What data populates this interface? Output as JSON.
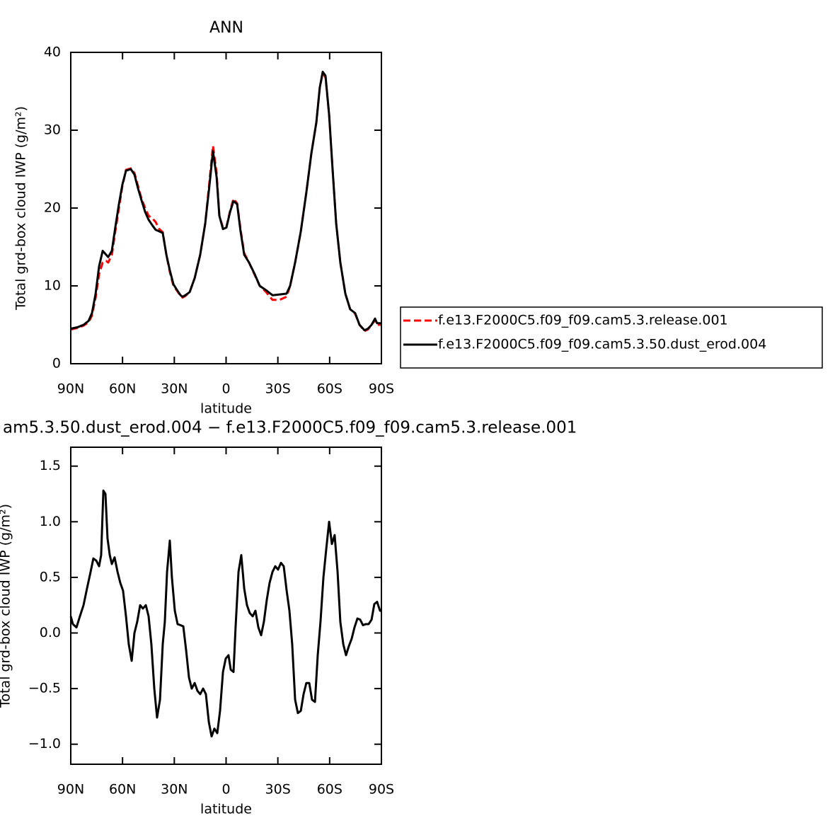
{
  "chart_data": [
    {
      "type": "line",
      "title": "ANN",
      "xlabel": "latitude",
      "ylabel": "Total grd-box cloud IWP (g/m²)",
      "x": [
        90,
        85.9,
        82.6,
        79.7,
        77.7,
        75.6,
        73.6,
        71.5,
        69.5,
        68.3,
        66.2,
        64.2,
        62.1,
        60.1,
        58,
        55.2,
        53.1,
        51,
        49,
        46.9,
        44.9,
        42.8,
        40.8,
        38.7,
        36.7,
        34.6,
        32.6,
        30.5,
        28.5,
        26.4,
        25.2,
        23.6,
        21.1,
        18.2,
        15,
        12.1,
        9.6,
        7.6,
        5.5,
        3.9,
        1.8,
        -0.2,
        -2.3,
        -4.3,
        -6.4,
        -8.4,
        -10.5,
        -13.3,
        -16.6,
        -19.5,
        -22.8,
        -26.9,
        -31,
        -35,
        -37.1,
        -40,
        -43.3,
        -46.5,
        -49.4,
        -52.3,
        -54.3,
        -56,
        -57.6,
        -59.7,
        -61.7,
        -63.8,
        -66.2,
        -69.1,
        -71.9,
        -74.8,
        -77.3,
        -80.2,
        -82.2,
        -84.3,
        -86.3,
        -87.5,
        -90
      ],
      "series": [
        {
          "name": "f.e13.F2000C5.f09_f09.cam5.3.release.001",
          "color": "#ff0000",
          "dashed": true,
          "values": [
            4.4,
            4.6,
            4.9,
            5.3,
            6.2,
            8.5,
            11.5,
            13,
            13.2,
            13,
            14,
            17,
            20,
            22.8,
            24.9,
            25.1,
            24.5,
            22.8,
            21.2,
            20,
            19,
            18.7,
            18.2,
            17.3,
            16.9,
            14,
            11.8,
            10,
            9.4,
            8.7,
            8.5,
            8.7,
            9.2,
            11,
            14,
            18,
            23.5,
            28,
            24.5,
            19,
            17.5,
            17.6,
            19.6,
            21.2,
            20.6,
            17.2,
            14.2,
            13,
            11.4,
            10,
            9.3,
            8.2,
            8.2,
            8.6,
            10,
            13,
            17,
            22,
            27,
            31,
            35.5,
            37.3,
            36.8,
            32,
            25,
            18,
            13,
            9,
            7,
            6.4,
            5,
            4.2,
            4.4,
            5,
            5.6,
            5,
            5
          ]
        },
        {
          "name": "f.e13.F2000C5.f09_f09.cam5.3.50.dust_erod.004",
          "color": "#000000",
          "dashed": false,
          "values": [
            4.5,
            4.7,
            5.0,
            5.5,
            6.5,
            9,
            12.5,
            14.5,
            14,
            13.7,
            14.5,
            17.5,
            20.5,
            23,
            24.8,
            25,
            24.3,
            22.5,
            21,
            19.5,
            18.5,
            17.8,
            17.2,
            17,
            16.8,
            14,
            12,
            10.2,
            9.5,
            8.8,
            8.6,
            8.8,
            9.2,
            11,
            14,
            18,
            23,
            27.3,
            24,
            19,
            17.3,
            17.5,
            19.5,
            20.9,
            20.5,
            17,
            14,
            13,
            11.5,
            10,
            9.5,
            8.8,
            8.9,
            9,
            10,
            13,
            17,
            22,
            27,
            31,
            35.5,
            37.5,
            37,
            32,
            25,
            18,
            13,
            9,
            7,
            6.5,
            5,
            4.3,
            4.5,
            5.0,
            5.8,
            5.2,
            5.2
          ]
        }
      ],
      "xlim": [
        90,
        -90
      ],
      "xticks": [
        {
          "value": 90,
          "label": "90N"
        },
        {
          "value": 60,
          "label": "60N"
        },
        {
          "value": 30,
          "label": "30N"
        },
        0,
        {
          "value": -30,
          "label": "30S"
        },
        {
          "value": -60,
          "label": "60S"
        },
        {
          "value": -90,
          "label": "90S"
        }
      ],
      "ylim": [
        0,
        40
      ],
      "yticks": [
        0,
        10,
        20,
        30,
        40
      ],
      "grid": false,
      "legend": "right"
    },
    {
      "type": "line",
      "title": "am5.3.50.dust_erod.004 − f.e13.F2000C5.f09_f09.cam5.3.release.001",
      "xlabel": "latitude",
      "ylabel": "Total grd-box cloud IWP (g/m²)",
      "x": [
        90,
        88.8,
        86.7,
        84.7,
        82.6,
        80.6,
        78.5,
        76.9,
        75.2,
        73.6,
        72.4,
        71.1,
        69.9,
        68.7,
        67.4,
        66.2,
        64.6,
        62.9,
        61.3,
        59.7,
        58,
        56.4,
        54.7,
        53.1,
        51.5,
        49.8,
        48.2,
        46.5,
        44.9,
        43.3,
        41.6,
        40,
        38.3,
        36.7,
        35.5,
        34.2,
        32.6,
        31.4,
        29.7,
        28.1,
        26.4,
        24.8,
        23.2,
        21.5,
        19.9,
        18.2,
        16.6,
        15,
        13.3,
        11.7,
        10,
        8.4,
        6.8,
        5.1,
        3.5,
        1.8,
        0.2,
        -1.4,
        -2.7,
        -4.3,
        -5.5,
        -7.2,
        -8.8,
        -10.5,
        -12.1,
        -13.7,
        -15.4,
        -17,
        -18.7,
        -20.3,
        -21.9,
        -23.6,
        -25.2,
        -26.9,
        -28.5,
        -30.1,
        -31.8,
        -33.4,
        -35.1,
        -36.7,
        -38.3,
        -40,
        -41.6,
        -43.3,
        -44.9,
        -46.5,
        -48.2,
        -49.8,
        -51.5,
        -53.1,
        -54.7,
        -56.4,
        -58,
        -59.7,
        -61.3,
        -62.9,
        -64.6,
        -66.2,
        -67.9,
        -69.5,
        -71.1,
        -72.8,
        -74.4,
        -76.1,
        -77.7,
        -79.3,
        -81,
        -82.6,
        -84.3,
        -85.9,
        -87.5,
        -89.2,
        -90
      ],
      "values": [
        0.15,
        0.08,
        0.05,
        0.15,
        0.25,
        0.4,
        0.55,
        0.67,
        0.65,
        0.6,
        0.7,
        1.28,
        1.25,
        0.85,
        0.7,
        0.62,
        0.68,
        0.55,
        0.45,
        0.38,
        0.15,
        -0.1,
        -0.25,
        0,
        0.1,
        0.25,
        0.22,
        0.25,
        0.15,
        -0.1,
        -0.5,
        -0.76,
        -0.6,
        -0.1,
        0.1,
        0.55,
        0.83,
        0.5,
        0.2,
        0.08,
        0.07,
        0.06,
        -0.15,
        -0.4,
        -0.5,
        -0.45,
        -0.52,
        -0.55,
        -0.5,
        -0.55,
        -0.8,
        -0.93,
        -0.86,
        -0.9,
        -0.7,
        -0.35,
        -0.23,
        -0.2,
        -0.33,
        -0.35,
        0.05,
        0.55,
        0.7,
        0.4,
        0.25,
        0.18,
        0.15,
        0.2,
        0.05,
        -0.02,
        0.1,
        0.3,
        0.45,
        0.55,
        0.6,
        0.57,
        0.63,
        0.6,
        0.38,
        0.2,
        -0.1,
        -0.6,
        -0.72,
        -0.7,
        -0.55,
        -0.45,
        -0.45,
        -0.6,
        -0.62,
        -0.2,
        0.1,
        0.5,
        0.75,
        1.0,
        0.8,
        0.88,
        0.55,
        0.1,
        -0.1,
        -0.2,
        -0.12,
        -0.05,
        0.05,
        0.13,
        0.12,
        0.07,
        0.08,
        0.08,
        0.12,
        0.26,
        0.28,
        0.2,
        0.2
      ],
      "color": "#000000",
      "xlim": [
        90,
        -90
      ],
      "xticks": [
        {
          "value": 90,
          "label": "90N"
        },
        {
          "value": 60,
          "label": "60N"
        },
        {
          "value": 30,
          "label": "30N"
        },
        0,
        {
          "value": -30,
          "label": "30S"
        },
        {
          "value": -60,
          "label": "60S"
        },
        {
          "value": -90,
          "label": "90S"
        }
      ],
      "ylim": [
        -1.18,
        1.67
      ],
      "yticks": [
        {
          "value": -1,
          "label": "−1.0"
        },
        {
          "value": -0.5,
          "label": "−0.5"
        },
        {
          "value": 0,
          "label": "0.0"
        },
        0.5,
        {
          "value": 1,
          "label": "1.0"
        },
        1.5
      ],
      "grid": false
    }
  ]
}
